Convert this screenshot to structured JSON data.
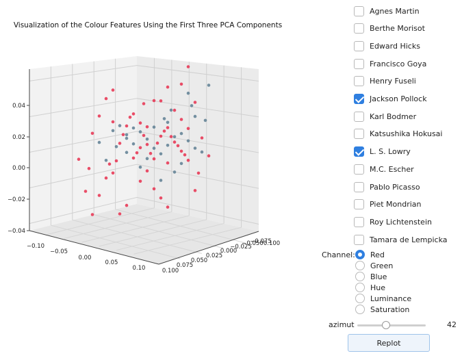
{
  "chart_data": {
    "type": "scatter",
    "title": "Visualization of the Colour Features Using the First Three PCA Components",
    "x_ticks": [
      "−0.10",
      "−0.05",
      "0.00",
      "0.05",
      "0.10"
    ],
    "y_ticks": [
      "0.100",
      "0.075",
      "0.050",
      "0.025",
      "0.000",
      "−0.025",
      "−0.050",
      "−0.075",
      "0.100"
    ],
    "z_ticks": [
      "0.04",
      "0.02",
      "0.00",
      "−0.02",
      "−0.04"
    ],
    "xlim": [
      -0.12,
      0.12
    ],
    "ylim": [
      -0.11,
      0.11
    ],
    "zlim": [
      -0.045,
      0.05
    ],
    "grid": true,
    "series": [
      {
        "name": "Jackson Pollock",
        "color": "#e8304f",
        "points": [
          [
            -0.08,
            0.0,
            -0.036
          ],
          [
            -0.09,
            0.0,
            -0.023
          ],
          [
            -0.07,
            0.0,
            -0.025
          ],
          [
            -0.085,
            0.0,
            -0.01
          ],
          [
            -0.06,
            0.0,
            -0.015
          ],
          [
            -0.05,
            0.0,
            -0.012
          ],
          [
            -0.045,
            0.0,
            -0.005
          ],
          [
            -0.055,
            0.0,
            -0.007
          ],
          [
            -0.04,
            0.0,
            0.005
          ],
          [
            -0.035,
            0.0,
            0.01
          ],
          [
            -0.03,
            0.0,
            0.015
          ],
          [
            -0.05,
            0.0,
            0.017
          ],
          [
            -0.02,
            0.0,
            0.022
          ],
          [
            -0.025,
            0.0,
            0.02
          ],
          [
            -0.01,
            0.0,
            0.017
          ],
          [
            -0.005,
            0.0,
            0.01
          ],
          [
            0.0,
            0.0,
            0.005
          ],
          [
            0.005,
            0.0,
            0.0
          ],
          [
            0.01,
            0.0,
            -0.003
          ],
          [
            -0.01,
            0.0,
            0.003
          ],
          [
            -0.015,
            0.0,
            0.0
          ],
          [
            -0.02,
            0.0,
            -0.003
          ],
          [
            0.015,
            0.0,
            0.006
          ],
          [
            0.02,
            0.0,
            0.01
          ],
          [
            0.025,
            0.0,
            0.013
          ],
          [
            0.03,
            0.0,
            0.015
          ],
          [
            0.035,
            0.0,
            0.01
          ],
          [
            0.04,
            0.0,
            0.007
          ],
          [
            0.045,
            0.0,
            0.005
          ],
          [
            0.05,
            0.0,
            0.002
          ],
          [
            0.055,
            0.0,
            0.0
          ],
          [
            0.06,
            0.0,
            -0.003
          ],
          [
            0.03,
            0.0,
            -0.005
          ],
          [
            0.0,
            0.0,
            -0.01
          ],
          [
            -0.01,
            0.0,
            -0.016
          ],
          [
            0.01,
            0.0,
            -0.02
          ],
          [
            0.02,
            0.0,
            -0.025
          ],
          [
            0.03,
            0.0,
            -0.03
          ],
          [
            -0.03,
            0.0,
            -0.03
          ],
          [
            -0.04,
            0.0,
            -0.035
          ],
          [
            0.02,
            0.0,
            0.03
          ],
          [
            0.03,
            0.0,
            0.038
          ],
          [
            0.05,
            0.0,
            0.04
          ],
          [
            0.06,
            0.0,
            0.05
          ],
          [
            0.07,
            0.0,
            0.03
          ],
          [
            0.08,
            0.0,
            0.01
          ],
          [
            0.09,
            0.0,
            0.0
          ],
          [
            0.075,
            0.0,
            -0.01
          ],
          [
            0.07,
            0.0,
            -0.02
          ],
          [
            -0.06,
            0.0,
            0.03
          ],
          [
            -0.05,
            0.0,
            0.035
          ],
          [
            -0.07,
            0.0,
            0.02
          ],
          [
            -0.1,
            0.0,
            -0.005
          ],
          [
            -0.08,
            0.0,
            0.01
          ],
          [
            0.05,
            0.0,
            0.02
          ],
          [
            0.04,
            0.0,
            0.025
          ],
          [
            0.01,
            0.0,
            0.03
          ],
          [
            -0.005,
            0.0,
            0.028
          ],
          [
            0.0,
            0.0,
            0.015
          ],
          [
            0.06,
            0.0,
            0.015
          ]
        ]
      },
      {
        "name": "L. S. Lowry",
        "color": "#5e7f93",
        "points": [
          [
            -0.05,
            0.0,
            0.012
          ],
          [
            -0.04,
            0.0,
            0.015
          ],
          [
            -0.03,
            0.0,
            0.01
          ],
          [
            -0.02,
            0.0,
            0.005
          ],
          [
            -0.01,
            0.0,
            0.012
          ],
          [
            0.0,
            0.0,
            0.008
          ],
          [
            0.01,
            0.0,
            0.003
          ],
          [
            0.02,
            0.0,
            0.0
          ],
          [
            0.03,
            0.0,
            0.005
          ],
          [
            0.04,
            0.0,
            0.01
          ],
          [
            0.05,
            0.0,
            0.012
          ],
          [
            0.06,
            0.0,
            0.008
          ],
          [
            0.07,
            0.0,
            0.004
          ],
          [
            0.08,
            0.0,
            0.002
          ],
          [
            0.085,
            0.0,
            0.02
          ],
          [
            0.09,
            0.0,
            0.04
          ],
          [
            0.06,
            0.0,
            0.035
          ],
          [
            0.04,
            0.0,
            -0.01
          ],
          [
            0.02,
            0.0,
            -0.015
          ],
          [
            -0.01,
            0.0,
            -0.008
          ],
          [
            -0.03,
            0.0,
            0.0
          ],
          [
            -0.045,
            0.0,
            0.003
          ],
          [
            0.0,
            0.0,
            -0.003
          ],
          [
            0.05,
            0.0,
            -0.005
          ],
          [
            -0.06,
            0.0,
            -0.005
          ],
          [
            0.07,
            0.0,
            0.022
          ],
          [
            0.03,
            0.0,
            0.018
          ],
          [
            -0.02,
            0.0,
            0.014
          ],
          [
            0.01,
            0.0,
            0.015
          ],
          [
            -0.03,
            0.0,
            0.008
          ],
          [
            -0.07,
            0.0,
            0.005
          ],
          [
            0.065,
            0.0,
            0.028
          ],
          [
            0.035,
            0.0,
            0.025
          ],
          [
            0.025,
            0.0,
            0.02
          ]
        ]
      }
    ]
  },
  "controls": {
    "artists": [
      {
        "label": "Agnes Martin",
        "checked": false
      },
      {
        "label": "Berthe Morisot",
        "checked": false
      },
      {
        "label": "Edward Hicks",
        "checked": false
      },
      {
        "label": "Francisco Goya",
        "checked": false
      },
      {
        "label": "Henry Fuseli",
        "checked": false
      },
      {
        "label": "Jackson Pollock",
        "checked": true
      },
      {
        "label": "Karl Bodmer",
        "checked": false
      },
      {
        "label": "Katsushika Hokusai",
        "checked": false
      },
      {
        "label": "L. S. Lowry",
        "checked": true
      },
      {
        "label": "M.C. Escher",
        "checked": false
      },
      {
        "label": "Pablo Picasso",
        "checked": false
      },
      {
        "label": "Piet Mondrian",
        "checked": false
      },
      {
        "label": "Roy Lichtenstein",
        "checked": false
      },
      {
        "label": "Tamara de Lempicka",
        "checked": false
      }
    ],
    "channel_label": "Channel:",
    "channels": [
      "Red",
      "Green",
      "Blue",
      "Hue",
      "Luminance",
      "Saturation"
    ],
    "selected_channel": "Red",
    "azimut_label": "azimut",
    "azimut_value": "42",
    "azimut_fraction": 0.42,
    "replot_label": "Replot"
  }
}
